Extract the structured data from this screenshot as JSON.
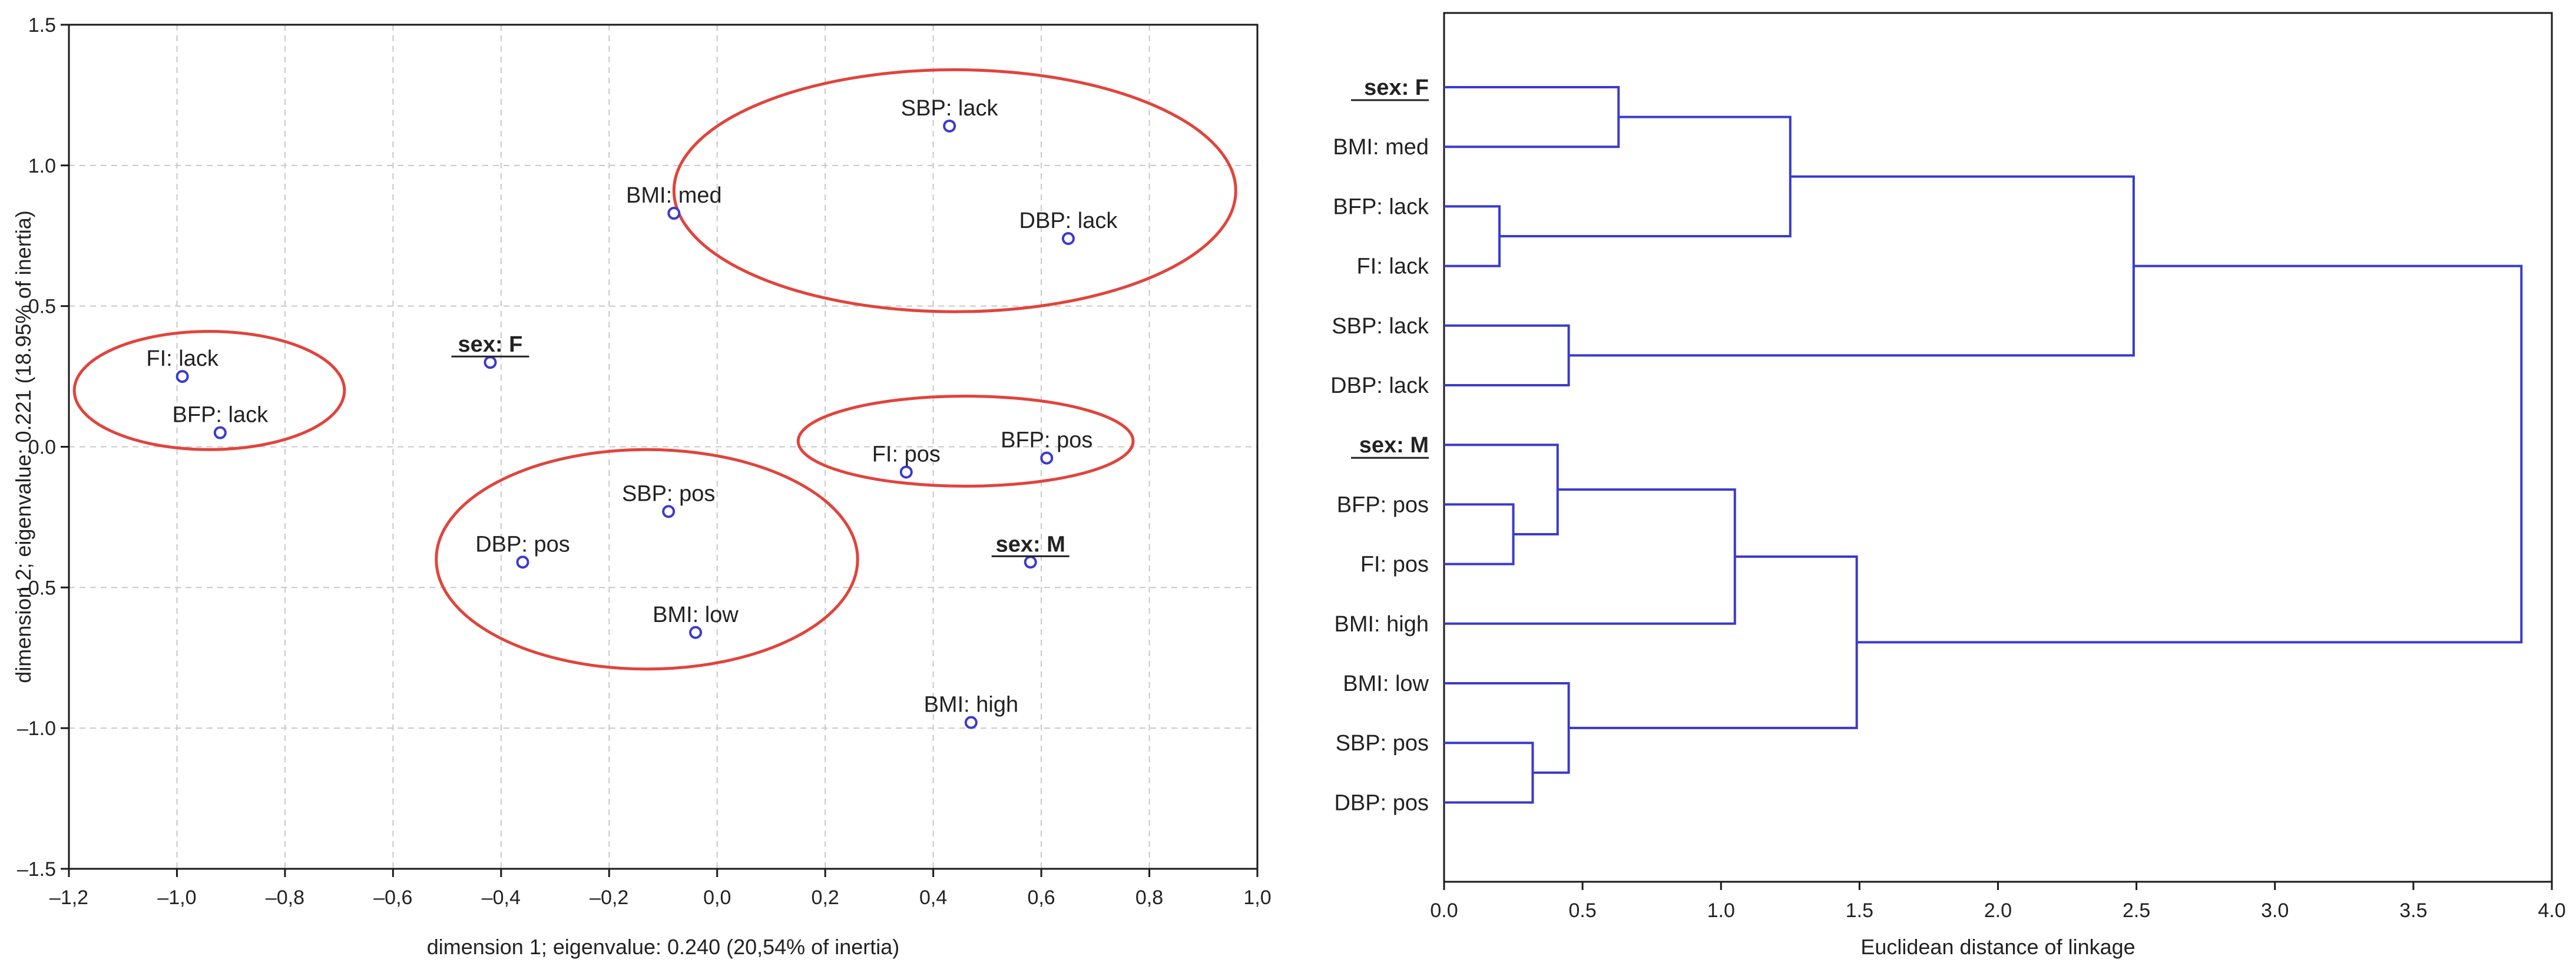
{
  "colors": {
    "points": "#3a3acc",
    "ellipses": "#e0443c",
    "dendrogram": "#3a3acc"
  },
  "chart_data": [
    {
      "type": "scatter",
      "title": "",
      "xlabel": "dimension 1; eigenvalue: 0.240 (20,54% of inertia)",
      "ylabel": "dimension 2; eigenvalue: 0.221 (18.95% of inertia)",
      "xlim": [
        -1.2,
        1.0
      ],
      "ylim": [
        -1.5,
        1.5
      ],
      "grid": true,
      "xticks": [
        -1.2,
        -1.0,
        -0.8,
        -0.6,
        -0.4,
        -0.2,
        0.0,
        0.2,
        0.4,
        0.6,
        0.8,
        1.0
      ],
      "xtick_labels": [
        "‒1,2",
        "‒1,0",
        "‒0,8",
        "‒0,6",
        "‒0,4",
        "‒0,2",
        "0,0",
        "0,2",
        "0,4",
        "0,6",
        "0,8",
        "1,0"
      ],
      "yticks": [
        1.5,
        1.0,
        0.5,
        0.0,
        -0.5,
        -1.0,
        -1.5
      ],
      "ytick_labels": [
        "1.5",
        "1.0",
        "0.5",
        "0.0",
        "‒0.5",
        "‒1.0",
        "‒1.5"
      ],
      "points": [
        {
          "label": "SBP: lack",
          "x": 0.43,
          "y": 1.14,
          "bold": false,
          "anchor": "top"
        },
        {
          "label": "BMI: med",
          "x": -0.08,
          "y": 0.83,
          "bold": false,
          "anchor": "top"
        },
        {
          "label": "DBP: lack",
          "x": 0.65,
          "y": 0.74,
          "bold": false,
          "anchor": "top"
        },
        {
          "label": "FI: lack",
          "x": -0.99,
          "y": 0.25,
          "bold": false,
          "anchor": "top"
        },
        {
          "label": "sex: F",
          "x": -0.42,
          "y": 0.3,
          "bold": true,
          "anchor": "top"
        },
        {
          "label": "BFP: lack",
          "x": -0.92,
          "y": 0.05,
          "bold": false,
          "anchor": "top"
        },
        {
          "label": "BFP: pos",
          "x": 0.61,
          "y": -0.04,
          "bold": false,
          "anchor": "top"
        },
        {
          "label": "FI: pos",
          "x": 0.35,
          "y": -0.09,
          "bold": false,
          "anchor": "top"
        },
        {
          "label": "SBP: pos",
          "x": -0.09,
          "y": -0.23,
          "bold": false,
          "anchor": "top"
        },
        {
          "label": "DBP: pos",
          "x": -0.36,
          "y": -0.41,
          "bold": false,
          "anchor": "top"
        },
        {
          "label": "sex: M",
          "x": 0.58,
          "y": -0.41,
          "bold": true,
          "anchor": "top"
        },
        {
          "label": "BMI: low",
          "x": -0.04,
          "y": -0.66,
          "bold": false,
          "anchor": "top"
        },
        {
          "label": "BMI: high",
          "x": 0.47,
          "y": -0.98,
          "bold": false,
          "anchor": "top"
        }
      ],
      "ellipses": [
        {
          "cx": 0.44,
          "cy": 0.91,
          "rx": 0.52,
          "ry": 0.43
        },
        {
          "cx": -0.94,
          "cy": 0.2,
          "rx": 0.25,
          "ry": 0.21
        },
        {
          "cx": 0.46,
          "cy": 0.02,
          "rx": 0.31,
          "ry": 0.16
        },
        {
          "cx": -0.13,
          "cy": -0.4,
          "rx": 0.39,
          "ry": 0.39
        }
      ]
    },
    {
      "type": "dendrogram",
      "title": "",
      "xlabel": "Euclidean distance of linkage",
      "xlim": [
        0.0,
        4.0
      ],
      "xticks": [
        0.0,
        0.5,
        1.0,
        1.5,
        2.0,
        2.5,
        3.0,
        3.5,
        4.0
      ],
      "xtick_labels": [
        "0.0",
        "0.5",
        "1.0",
        "1.5",
        "2.0",
        "2.5",
        "3.0",
        "3.5",
        "4.0"
      ],
      "leaves": [
        {
          "label": "sex: F",
          "bold": true
        },
        {
          "label": "BMI: med",
          "bold": false
        },
        {
          "label": "BFP: lack",
          "bold": false
        },
        {
          "label": "FI: lack",
          "bold": false
        },
        {
          "label": "SBP: lack",
          "bold": false
        },
        {
          "label": "DBP: lack",
          "bold": false
        },
        {
          "label": "sex: M",
          "bold": true
        },
        {
          "label": "BFP: pos",
          "bold": false
        },
        {
          "label": "FI: pos",
          "bold": false
        },
        {
          "label": "BMI: high",
          "bold": false
        },
        {
          "label": "BMI: low",
          "bold": false
        },
        {
          "label": "SBP: pos",
          "bold": false
        },
        {
          "label": "DBP: pos",
          "bold": false
        }
      ],
      "merges": [
        {
          "a": 0,
          "b": 1,
          "height": 0.63
        },
        {
          "a": 2,
          "b": 3,
          "height": 0.2
        },
        {
          "a": 13,
          "b": 14,
          "height": 1.25
        },
        {
          "a": 4,
          "b": 5,
          "height": 0.45
        },
        {
          "a": 15,
          "b": 16,
          "height": 2.49
        },
        {
          "a": 7,
          "b": 8,
          "height": 0.25
        },
        {
          "a": 6,
          "b": 18,
          "height": 0.41
        },
        {
          "a": 19,
          "b": 9,
          "height": 1.05
        },
        {
          "a": 11,
          "b": 12,
          "height": 0.32
        },
        {
          "a": 10,
          "b": 21,
          "height": 0.45
        },
        {
          "a": 20,
          "b": 22,
          "height": 1.49
        },
        {
          "a": 17,
          "b": 23,
          "height": 3.89
        }
      ]
    }
  ]
}
